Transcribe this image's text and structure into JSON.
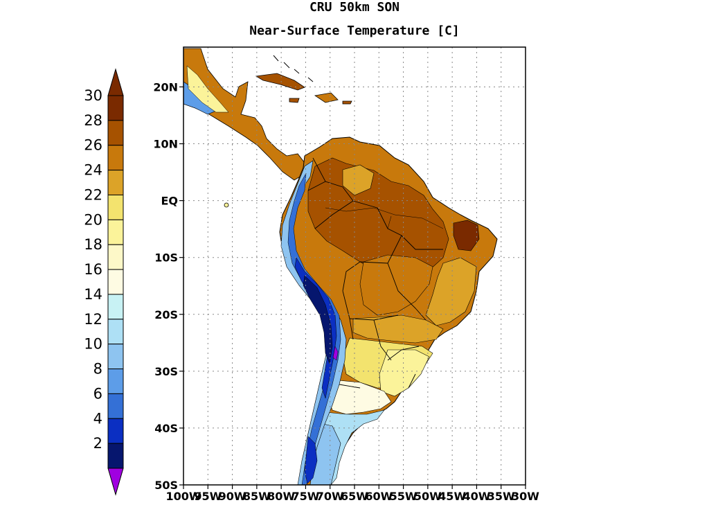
{
  "title_line1": "CRU 50km SON",
  "title_line2": "Near-Surface Temperature [C]",
  "legend": {
    "labels": [
      "30",
      "28",
      "26",
      "24",
      "22",
      "20",
      "18",
      "16",
      "14",
      "12",
      "10",
      "8",
      "6",
      "4",
      "2"
    ],
    "colors": [
      "#7a2a00",
      "#a65200",
      "#c8790c",
      "#dca328",
      "#f3e36e",
      "#fbf39a",
      "#fdf8c8",
      "#fefbe3",
      "#c8f2f4",
      "#aee0f5",
      "#8ec4f0",
      "#5d9de8",
      "#3470d6",
      "#0b2fc2",
      "#06166e",
      "#000a45"
    ],
    "over_color": "#7a2a00",
    "under_color": "#a000e0"
  },
  "axes": {
    "lat_labels": [
      "20N",
      "10N",
      "EQ",
      "10S",
      "20S",
      "30S",
      "40S",
      "50S"
    ],
    "lon_labels": [
      "100W",
      "95W",
      "90W",
      "85W",
      "80W",
      "75W",
      "70W",
      "65W",
      "60W",
      "55W",
      "50W",
      "45W",
      "40W",
      "35W",
      "30W"
    ],
    "grid": "dotted"
  },
  "map": {
    "region": "South America",
    "projection": "lat-lon",
    "lon_range": [
      -100,
      -30
    ],
    "lat_range": [
      -50,
      27
    ]
  }
}
